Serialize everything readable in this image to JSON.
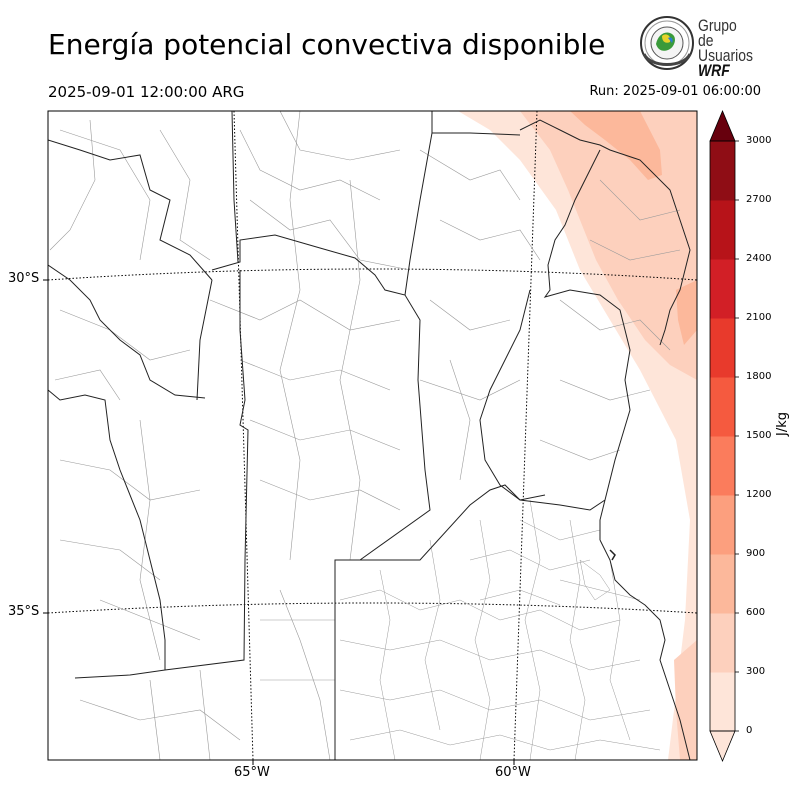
{
  "header": {
    "title": "Energía potencial convectiva disponible",
    "valid_time": "2025-09-01 12:00:00 ARG",
    "run_time": "Run: 2025-09-01 06:00:00"
  },
  "logo": {
    "line1": "Grupo de",
    "line2": "Usuarios",
    "line3": "WRF"
  },
  "axes": {
    "latitude_labels": [
      "30°S",
      "35°S"
    ],
    "longitude_labels": [
      "65°W",
      "60°W"
    ]
  },
  "colorbar": {
    "unit": "J/kg",
    "ticks": [
      "0",
      "300",
      "600",
      "900",
      "1200",
      "1500",
      "1800",
      "2100",
      "2400",
      "2700",
      "3000"
    ],
    "colors": [
      "#fee5d9",
      "#fdd0bd",
      "#fcb89b",
      "#fc9f7e",
      "#fb7c5c",
      "#f55a3f",
      "#e83a2c",
      "#d21f26",
      "#b71319",
      "#8f0d15",
      "#67000d"
    ],
    "extend": "both"
  }
}
